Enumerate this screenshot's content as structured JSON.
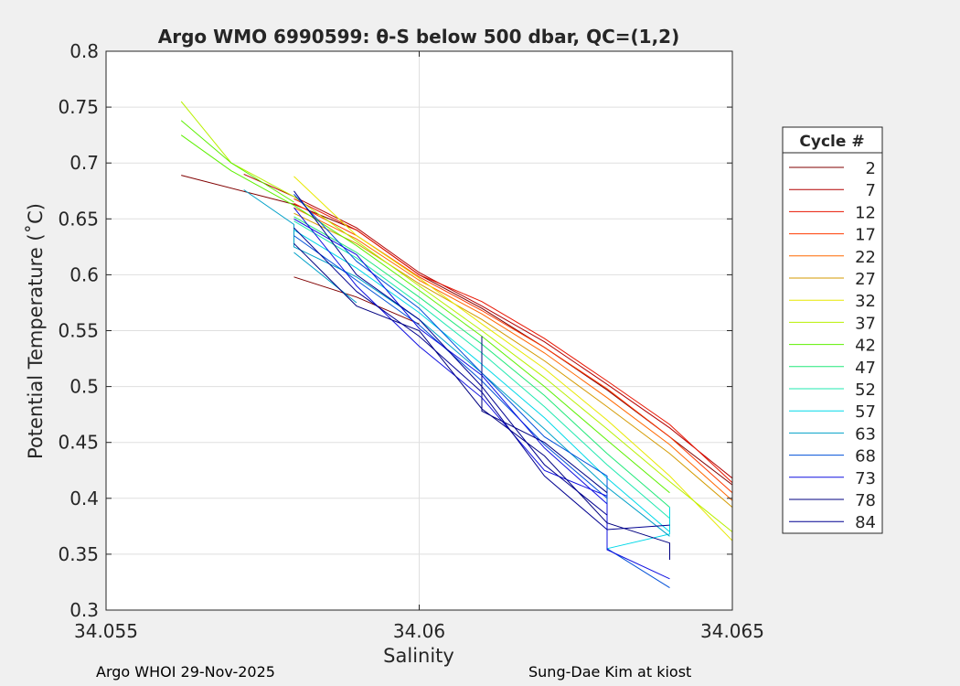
{
  "chart_data": {
    "type": "line",
    "title": "Argo WMO 6990599: θ-S below 500 dbar,  QC=(1,2)",
    "xlabel": "Salinity",
    "ylabel": "Potential Temperature (˚C)",
    "xlim": [
      34.055,
      34.065
    ],
    "ylim": [
      0.3,
      0.8
    ],
    "xticks": [
      "34.055",
      "34.06",
      "34.065"
    ],
    "yticks": [
      "0.3",
      "0.35",
      "0.4",
      "0.45",
      "0.5",
      "0.55",
      "0.6",
      "0.65",
      "0.7",
      "0.75",
      "0.8"
    ],
    "grid": true,
    "legend": {
      "title": "Cycle #",
      "placement": "right",
      "entries": [
        {
          "label": "2",
          "color": "#800000"
        },
        {
          "label": "7",
          "color": "#b40000"
        },
        {
          "label": "12",
          "color": "#e81400"
        },
        {
          "label": "17",
          "color": "#ff3a00"
        },
        {
          "label": "22",
          "color": "#ff6800"
        },
        {
          "label": "27",
          "color": "#d49a00"
        },
        {
          "label": "32",
          "color": "#e8e800"
        },
        {
          "label": "37",
          "color": "#b8f000"
        },
        {
          "label": "42",
          "color": "#5cf000"
        },
        {
          "label": "47",
          "color": "#20e878"
        },
        {
          "label": "52",
          "color": "#20e8b0"
        },
        {
          "label": "57",
          "color": "#00d8e8"
        },
        {
          "label": "63",
          "color": "#00a0c8"
        },
        {
          "label": "68",
          "color": "#0050d8"
        },
        {
          "label": "73",
          "color": "#1010e0"
        },
        {
          "label": "78",
          "color": "#000080"
        },
        {
          "label": "84",
          "color": "#000090"
        }
      ]
    },
    "series": [
      {
        "cycle": 2,
        "color": "#800000",
        "points": [
          [
            34.0562,
            0.689
          ],
          [
            34.058,
            0.663
          ],
          [
            34.059,
            0.64
          ],
          [
            34.06,
            0.6
          ],
          [
            34.061,
            0.57
          ],
          [
            34.062,
            0.535
          ],
          [
            34.063,
            0.497
          ],
          [
            34.064,
            0.455
          ],
          [
            34.065,
            0.412
          ]
        ]
      },
      {
        "cycle": 2,
        "color": "#800000",
        "points": [
          [
            34.058,
            0.598
          ],
          [
            34.059,
            0.58
          ],
          [
            34.06,
            0.556
          ]
        ]
      },
      {
        "cycle": 7,
        "color": "#b40000",
        "points": [
          [
            34.0572,
            0.69
          ],
          [
            34.058,
            0.67
          ],
          [
            34.059,
            0.642
          ],
          [
            34.06,
            0.602
          ],
          [
            34.061,
            0.572
          ],
          [
            34.062,
            0.54
          ],
          [
            34.063,
            0.502
          ],
          [
            34.064,
            0.463
          ],
          [
            34.065,
            0.418
          ]
        ]
      },
      {
        "cycle": 12,
        "color": "#e81400",
        "points": [
          [
            34.058,
            0.668
          ],
          [
            34.059,
            0.64
          ],
          [
            34.06,
            0.6
          ],
          [
            34.061,
            0.576
          ],
          [
            34.062,
            0.543
          ],
          [
            34.063,
            0.505
          ],
          [
            34.064,
            0.466
          ],
          [
            34.065,
            0.414
          ]
        ]
      },
      {
        "cycle": 17,
        "color": "#ff3a00",
        "points": [
          [
            34.058,
            0.664
          ],
          [
            34.059,
            0.635
          ],
          [
            34.06,
            0.598
          ],
          [
            34.061,
            0.568
          ],
          [
            34.062,
            0.535
          ],
          [
            34.063,
            0.498
          ],
          [
            34.064,
            0.455
          ],
          [
            34.065,
            0.405
          ]
        ]
      },
      {
        "cycle": 22,
        "color": "#ff6800",
        "points": [
          [
            34.058,
            0.66
          ],
          [
            34.059,
            0.632
          ],
          [
            34.06,
            0.595
          ],
          [
            34.061,
            0.565
          ],
          [
            34.062,
            0.53
          ],
          [
            34.063,
            0.49
          ],
          [
            34.064,
            0.448
          ],
          [
            34.065,
            0.398
          ]
        ]
      },
      {
        "cycle": 27,
        "color": "#d49a00",
        "points": [
          [
            34.058,
            0.655
          ],
          [
            34.059,
            0.628
          ],
          [
            34.06,
            0.592
          ],
          [
            34.061,
            0.56
          ],
          [
            34.062,
            0.523
          ],
          [
            34.063,
            0.482
          ],
          [
            34.064,
            0.44
          ],
          [
            34.065,
            0.392
          ]
        ]
      },
      {
        "cycle": 32,
        "color": "#e8e800",
        "points": [
          [
            34.058,
            0.688
          ],
          [
            34.059,
            0.635
          ],
          [
            34.06,
            0.597
          ],
          [
            34.061,
            0.556
          ],
          [
            34.062,
            0.516
          ],
          [
            34.063,
            0.47
          ],
          [
            34.064,
            0.42
          ],
          [
            34.065,
            0.362
          ]
        ]
      },
      {
        "cycle": 37,
        "color": "#b8f000",
        "points": [
          [
            34.0562,
            0.755
          ],
          [
            34.057,
            0.7
          ],
          [
            34.058,
            0.67
          ],
          [
            34.059,
            0.63
          ],
          [
            34.06,
            0.59
          ],
          [
            34.061,
            0.55
          ],
          [
            34.062,
            0.508
          ],
          [
            34.063,
            0.462
          ],
          [
            34.064,
            0.415
          ],
          [
            34.065,
            0.37
          ]
        ]
      },
      {
        "cycle": 42,
        "color": "#5cf000",
        "points": [
          [
            34.0562,
            0.725
          ],
          [
            34.057,
            0.693
          ],
          [
            34.058,
            0.662
          ],
          [
            34.059,
            0.626
          ],
          [
            34.06,
            0.586
          ],
          [
            34.061,
            0.545
          ],
          [
            34.062,
            0.5
          ],
          [
            34.063,
            0.452
          ],
          [
            34.064,
            0.405
          ]
        ]
      },
      {
        "cycle": 42,
        "color": "#5cf000",
        "points": [
          [
            34.0562,
            0.738
          ],
          [
            34.057,
            0.7
          ],
          [
            34.058,
            0.665
          ]
        ]
      },
      {
        "cycle": 47,
        "color": "#20e878",
        "points": [
          [
            34.058,
            0.652
          ],
          [
            34.059,
            0.62
          ],
          [
            34.06,
            0.58
          ],
          [
            34.061,
            0.538
          ],
          [
            34.062,
            0.492
          ],
          [
            34.063,
            0.44
          ],
          [
            34.064,
            0.392
          ]
        ]
      },
      {
        "cycle": 52,
        "color": "#20e8b0",
        "points": [
          [
            34.058,
            0.648
          ],
          [
            34.059,
            0.615
          ],
          [
            34.06,
            0.574
          ],
          [
            34.061,
            0.53
          ],
          [
            34.062,
            0.482
          ],
          [
            34.063,
            0.43
          ],
          [
            34.064,
            0.382
          ]
        ]
      },
      {
        "cycle": 57,
        "color": "#00d8e8",
        "points": [
          [
            34.058,
            0.64
          ],
          [
            34.059,
            0.606
          ],
          [
            34.06,
            0.566
          ],
          [
            34.061,
            0.52
          ],
          [
            34.062,
            0.472
          ],
          [
            34.063,
            0.418
          ],
          [
            34.064,
            0.37
          ]
        ]
      },
      {
        "cycle": 57,
        "color": "#00d8e8",
        "points": [
          [
            34.063,
            0.355
          ],
          [
            34.064,
            0.368
          ],
          [
            34.064,
            0.392
          ]
        ]
      },
      {
        "cycle": 63,
        "color": "#00a0c8",
        "points": [
          [
            34.0572,
            0.676
          ],
          [
            34.058,
            0.645
          ],
          [
            34.058,
            0.625
          ],
          [
            34.059,
            0.598
          ],
          [
            34.06,
            0.56
          ],
          [
            34.061,
            0.512
          ],
          [
            34.062,
            0.462
          ],
          [
            34.063,
            0.41
          ],
          [
            34.064,
            0.366
          ]
        ]
      },
      {
        "cycle": 63,
        "color": "#00a0c8",
        "points": [
          [
            34.058,
            0.62
          ],
          [
            34.059,
            0.575
          ]
        ]
      },
      {
        "cycle": 68,
        "color": "#0050d8",
        "points": [
          [
            34.058,
            0.672
          ],
          [
            34.059,
            0.612
          ],
          [
            34.06,
            0.57
          ],
          [
            34.061,
            0.512
          ],
          [
            34.062,
            0.455
          ],
          [
            34.063,
            0.42
          ],
          [
            34.063,
            0.355
          ],
          [
            34.064,
            0.32
          ]
        ]
      },
      {
        "cycle": 68,
        "color": "#0050d8",
        "points": [
          [
            34.058,
            0.635
          ],
          [
            34.059,
            0.595
          ],
          [
            34.06,
            0.555
          ],
          [
            34.061,
            0.505
          ],
          [
            34.062,
            0.448
          ],
          [
            34.063,
            0.4
          ]
        ]
      },
      {
        "cycle": 73,
        "color": "#1010e0",
        "points": [
          [
            34.058,
            0.65
          ],
          [
            34.059,
            0.618
          ],
          [
            34.06,
            0.552
          ],
          [
            34.061,
            0.51
          ],
          [
            34.062,
            0.445
          ],
          [
            34.063,
            0.395
          ],
          [
            34.063,
            0.354
          ],
          [
            34.064,
            0.328
          ]
        ]
      },
      {
        "cycle": 73,
        "color": "#1010e0",
        "points": [
          [
            34.058,
            0.66
          ],
          [
            34.059,
            0.59
          ],
          [
            34.06,
            0.536
          ],
          [
            34.061,
            0.49
          ],
          [
            34.062,
            0.425
          ],
          [
            34.063,
            0.402
          ]
        ]
      },
      {
        "cycle": 78,
        "color": "#000080",
        "points": [
          [
            34.058,
            0.628
          ],
          [
            34.059,
            0.572
          ],
          [
            34.06,
            0.55
          ],
          [
            34.061,
            0.48
          ],
          [
            34.062,
            0.438
          ],
          [
            34.063,
            0.378
          ],
          [
            34.064,
            0.36
          ],
          [
            34.064,
            0.345
          ]
        ]
      },
      {
        "cycle": 78,
        "color": "#000080",
        "points": [
          [
            34.061,
            0.545
          ],
          [
            34.061,
            0.478
          ],
          [
            34.062,
            0.45
          ],
          [
            34.063,
            0.405
          ]
        ]
      },
      {
        "cycle": 84,
        "color": "#000090",
        "points": [
          [
            34.058,
            0.642
          ],
          [
            34.059,
            0.585
          ],
          [
            34.06,
            0.545
          ],
          [
            34.061,
            0.495
          ],
          [
            34.062,
            0.42
          ],
          [
            34.063,
            0.372
          ],
          [
            34.064,
            0.376
          ]
        ]
      },
      {
        "cycle": 84,
        "color": "#000090",
        "points": [
          [
            34.058,
            0.675
          ],
          [
            34.059,
            0.6
          ],
          [
            34.06,
            0.56
          ],
          [
            34.061,
            0.5
          ],
          [
            34.062,
            0.43
          ],
          [
            34.063,
            0.385
          ]
        ]
      }
    ]
  },
  "footer": {
    "left": "Argo WHOI 29-Nov-2025",
    "right": "Sung-Dae Kim at kiost"
  }
}
